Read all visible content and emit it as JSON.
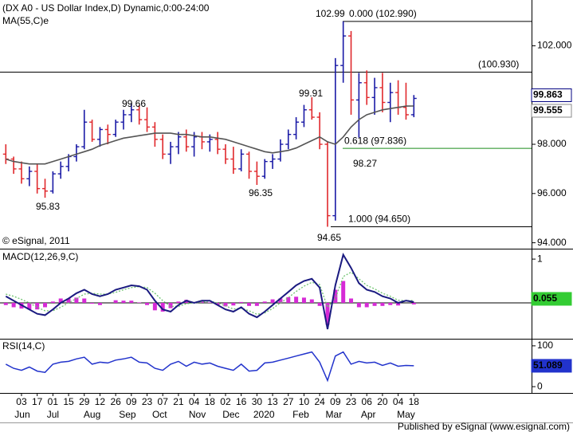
{
  "chart_data": [
    {
      "type": "ohlc",
      "title": "(DX A0 - US Dollar Index,D) Dynamic,0:00-24:00",
      "x": [
        -2,
        -1,
        0,
        1,
        2,
        3,
        4,
        5,
        6,
        7,
        8,
        9,
        10,
        11,
        12,
        13,
        14,
        15,
        16,
        17,
        18,
        19,
        20,
        21,
        22,
        23,
        24,
        25,
        26,
        27,
        28,
        29,
        30,
        31,
        32,
        33,
        34,
        35,
        36,
        37,
        38,
        39,
        40,
        41,
        42,
        43,
        44,
        45,
        46,
        47,
        48,
        49,
        50
      ],
      "open": [
        97.6,
        97.4,
        97.0,
        96.6,
        96.9,
        96.2,
        96.1,
        96.8,
        97.1,
        97.5,
        97.9,
        98.9,
        98.2,
        98.6,
        98.4,
        98.9,
        99.2,
        99.4,
        99.0,
        98.7,
        98.2,
        97.6,
        97.9,
        98.3,
        97.9,
        98.3,
        98.1,
        98.2,
        97.8,
        97.4,
        97.0,
        97.6,
        96.9,
        96.7,
        97.3,
        97.4,
        98.0,
        98.4,
        98.9,
        99.4,
        99.1,
        98.0,
        95.1,
        101.2,
        102.4,
        99.8,
        100.5,
        99.9,
        100.3,
        99.7,
        100.1,
        99.5,
        99.2
      ],
      "high": [
        98.0,
        97.5,
        97.3,
        97.1,
        97.2,
        96.6,
        96.9,
        97.3,
        97.6,
        98.0,
        99.4,
        99.0,
        98.7,
        98.8,
        99.0,
        99.4,
        99.66,
        99.6,
        99.5,
        98.9,
        98.4,
        98.1,
        98.5,
        98.6,
        98.5,
        98.5,
        98.4,
        98.5,
        98.0,
        97.9,
        97.8,
        97.7,
        97.3,
        97.4,
        97.6,
        98.2,
        98.6,
        99.1,
        99.6,
        99.91,
        99.3,
        98.1,
        101.5,
        102.99,
        102.6,
        100.9,
        101.0,
        100.7,
        100.9,
        100.5,
        100.6,
        100.5,
        100.0
      ],
      "low": [
        97.2,
        96.8,
        96.4,
        96.3,
        96.0,
        95.83,
        96.0,
        96.6,
        96.9,
        97.3,
        97.8,
        98.1,
        97.9,
        98.0,
        98.3,
        98.6,
        98.9,
        98.8,
        98.5,
        97.9,
        97.4,
        97.2,
        97.6,
        97.7,
        97.5,
        97.8,
        97.7,
        97.6,
        97.2,
        96.8,
        96.9,
        96.6,
        96.35,
        96.6,
        97.0,
        97.3,
        97.8,
        98.2,
        98.7,
        99.0,
        97.8,
        94.65,
        94.9,
        100.5,
        99.2,
        98.27,
        99.6,
        99.2,
        99.3,
        98.9,
        99.2,
        99.0,
        99.1
      ],
      "close": [
        97.4,
        97.0,
        96.6,
        96.9,
        96.2,
        96.1,
        96.8,
        97.1,
        97.5,
        97.9,
        98.9,
        98.2,
        98.6,
        98.4,
        98.9,
        99.2,
        99.4,
        99.0,
        98.7,
        98.2,
        97.6,
        97.9,
        98.3,
        97.9,
        98.3,
        98.1,
        98.2,
        97.8,
        97.4,
        97.0,
        97.6,
        96.9,
        96.7,
        97.3,
        97.4,
        98.0,
        98.4,
        98.9,
        99.4,
        99.1,
        98.0,
        95.1,
        101.2,
        102.4,
        99.8,
        100.5,
        99.9,
        100.3,
        99.7,
        100.1,
        99.5,
        99.2,
        99.863
      ],
      "up_color": "#1a1aa6",
      "down_color": "#e0282c",
      "series": [
        {
          "name": "MA(55,C)e",
          "color": "#555555",
          "values": [
            97.4,
            97.3,
            97.25,
            97.2,
            97.2,
            97.2,
            97.3,
            97.4,
            97.5,
            97.6,
            97.7,
            97.8,
            97.95,
            98.05,
            98.15,
            98.25,
            98.3,
            98.35,
            98.4,
            98.45,
            98.45,
            98.45,
            98.4,
            98.4,
            98.35,
            98.3,
            98.3,
            98.25,
            98.2,
            98.1,
            98.0,
            97.9,
            97.8,
            97.7,
            97.65,
            97.7,
            97.75,
            97.85,
            98.0,
            98.15,
            98.3,
            98.1,
            98.0,
            98.3,
            98.7,
            99.0,
            99.2,
            99.3,
            99.4,
            99.45,
            99.5,
            99.55,
            99.555
          ]
        }
      ],
      "xlim": [
        -2.74,
        65
      ],
      "ylim": [
        93.76,
        103.86
      ],
      "yticks": [
        {
          "value": 102,
          "label": "102.000"
        },
        {
          "value": 98,
          "label": "98.000"
        },
        {
          "value": 96,
          "label": "96.000"
        },
        {
          "value": 94,
          "label": "94.000"
        }
      ],
      "levels": [
        {
          "label": "0.000 (102.990)",
          "value": 102.99,
          "color": "#000000"
        },
        {
          "label": "(100.930)",
          "value": 100.93,
          "color": "#000000"
        },
        {
          "label": "0.618 (97.836)",
          "value": 97.836,
          "color": "#1c8c1c"
        },
        {
          "label": "1.000 (94.650)",
          "value": 94.65,
          "color": "#000000"
        }
      ],
      "swing_labels": [
        102.99,
        99.66,
        99.91,
        95.83,
        96.35,
        94.65,
        98.27
      ],
      "watermark": "© eSignal, 2011"
    },
    {
      "type": "macd",
      "title": "MACD(12,26,9,C)",
      "x": [
        -2,
        -1,
        0,
        1,
        2,
        3,
        4,
        5,
        6,
        7,
        8,
        9,
        10,
        11,
        12,
        13,
        14,
        15,
        16,
        17,
        18,
        19,
        20,
        21,
        22,
        23,
        24,
        25,
        26,
        27,
        28,
        29,
        30,
        31,
        32,
        33,
        34,
        35,
        36,
        37,
        38,
        39,
        40,
        41,
        42,
        43,
        44,
        45,
        46,
        47,
        48,
        49,
        50
      ],
      "series": [
        {
          "color": "#1a1a80",
          "values": [
            0.15,
            0.05,
            -0.05,
            -0.15,
            -0.25,
            -0.28,
            -0.15,
            0.0,
            0.1,
            0.22,
            0.3,
            0.2,
            0.15,
            0.2,
            0.3,
            0.35,
            0.4,
            0.38,
            0.3,
            0.05,
            -0.15,
            -0.2,
            -0.05,
            0.05,
            0.0,
            0.05,
            0.05,
            -0.05,
            -0.15,
            -0.2,
            -0.1,
            -0.25,
            -0.33,
            -0.2,
            -0.05,
            0.1,
            0.25,
            0.4,
            0.5,
            0.55,
            0.35,
            -0.6,
            0.4,
            1.1,
            0.8,
            0.45,
            0.3,
            0.25,
            0.15,
            0.1,
            0.0,
            0.05,
            0.02
          ]
        },
        {
          "color": "#6fc46f",
          "values": [
            0.2,
            0.15,
            0.08,
            0.0,
            -0.1,
            -0.18,
            -0.18,
            -0.1,
            0.0,
            0.1,
            0.2,
            0.22,
            0.2,
            0.2,
            0.24,
            0.3,
            0.35,
            0.37,
            0.35,
            0.22,
            0.05,
            -0.08,
            -0.08,
            -0.02,
            0.0,
            0.02,
            0.04,
            0.0,
            -0.07,
            -0.14,
            -0.12,
            -0.18,
            -0.26,
            -0.23,
            -0.13,
            0.0,
            0.12,
            0.26,
            0.38,
            0.47,
            0.42,
            -0.1,
            0.1,
            0.6,
            0.7,
            0.55,
            0.4,
            0.32,
            0.22,
            0.15,
            0.06,
            0.05,
            0.055
          ]
        },
        {
          "color": "#d62ad6",
          "values": [
            -0.05,
            -0.1,
            -0.13,
            -0.15,
            -0.15,
            -0.1,
            0.03,
            0.1,
            0.1,
            0.12,
            0.1,
            -0.02,
            -0.05,
            0,
            0.06,
            0.05,
            0.05,
            0.01,
            -0.05,
            -0.17,
            -0.2,
            -0.12,
            0.03,
            0.07,
            0,
            0.03,
            0.01,
            -0.05,
            -0.08,
            -0.06,
            0.02,
            -0.07,
            -0.07,
            0.03,
            0.08,
            0.1,
            0.13,
            0.14,
            0.12,
            0.08,
            -0.07,
            -0.5,
            0.3,
            0.5,
            0.1,
            -0.1,
            -0.1,
            -0.07,
            -0.07,
            -0.05,
            -0.06,
            0,
            -0.035
          ]
        }
      ],
      "xlim": [
        -2.74,
        65
      ],
      "ylim": [
        -0.82,
        1.22
      ],
      "yticks": [
        1
      ]
    },
    {
      "type": "line",
      "title": "RSI(14,C)",
      "x": [
        -2,
        -1,
        0,
        1,
        2,
        3,
        4,
        5,
        6,
        7,
        8,
        9,
        10,
        11,
        12,
        13,
        14,
        15,
        16,
        17,
        18,
        19,
        20,
        21,
        22,
        23,
        24,
        25,
        26,
        27,
        28,
        29,
        30,
        31,
        32,
        33,
        34,
        35,
        36,
        37,
        38,
        39,
        40,
        41,
        42,
        43,
        44,
        45,
        46,
        47,
        48,
        49,
        50
      ],
      "values": [
        55,
        45,
        40,
        48,
        38,
        35,
        55,
        60,
        62,
        68,
        72,
        55,
        60,
        58,
        65,
        68,
        72,
        60,
        58,
        45,
        40,
        55,
        62,
        50,
        60,
        55,
        58,
        50,
        45,
        40,
        55,
        38,
        40,
        58,
        60,
        65,
        70,
        75,
        80,
        85,
        60,
        15,
        75,
        85,
        55,
        62,
        58,
        60,
        52,
        58,
        50,
        52,
        51.089
      ],
      "color": "#2233cc",
      "xlim": [
        -2.74,
        65
      ],
      "ylim": [
        -15.4,
        115.4
      ],
      "yticks": [
        100,
        0
      ],
      "xticks": [
        {
          "value": 0,
          "label": "03"
        },
        {
          "value": 2,
          "label": "17"
        },
        {
          "value": 4,
          "label": "01"
        },
        {
          "value": 6,
          "label": "15"
        },
        {
          "value": 8,
          "label": "29"
        },
        {
          "value": 10,
          "label": "12"
        },
        {
          "value": 12,
          "label": "26"
        },
        {
          "value": 14,
          "label": "09"
        },
        {
          "value": 16,
          "label": "23"
        },
        {
          "value": 18,
          "label": "07"
        },
        {
          "value": 20,
          "label": "21"
        },
        {
          "value": 22,
          "label": "04"
        },
        {
          "value": 24,
          "label": "18"
        },
        {
          "value": 26,
          "label": "02"
        },
        {
          "value": 28,
          "label": "16"
        },
        {
          "value": 30,
          "label": "30"
        },
        {
          "value": 32,
          "label": "13"
        },
        {
          "value": 34,
          "label": "27"
        },
        {
          "value": 36,
          "label": "10"
        },
        {
          "value": 38,
          "label": "24"
        },
        {
          "value": 40,
          "label": "09"
        },
        {
          "value": 42,
          "label": "23"
        },
        {
          "value": 44,
          "label": "06"
        },
        {
          "value": 46,
          "label": "20"
        },
        {
          "value": 48,
          "label": "04"
        },
        {
          "value": 50,
          "label": "18"
        }
      ],
      "month_ticks": [
        {
          "value": 0.1,
          "label": "Jun"
        },
        {
          "value": 4,
          "label": "Jul"
        },
        {
          "value": 9,
          "label": "Aug"
        },
        {
          "value": 13.5,
          "label": "Sep"
        },
        {
          "value": 17.6,
          "label": "Oct"
        },
        {
          "value": 22.4,
          "label": "Nov"
        },
        {
          "value": 26.7,
          "label": "Dec"
        },
        {
          "value": 30.9,
          "label": "2020"
        },
        {
          "value": 35.6,
          "label": "Feb"
        },
        {
          "value": 39.8,
          "label": "Mar"
        },
        {
          "value": 44.2,
          "label": "Apr"
        },
        {
          "value": 49,
          "label": "May"
        }
      ]
    }
  ],
  "footer": "Published by eSignal (www.esignal.com)"
}
